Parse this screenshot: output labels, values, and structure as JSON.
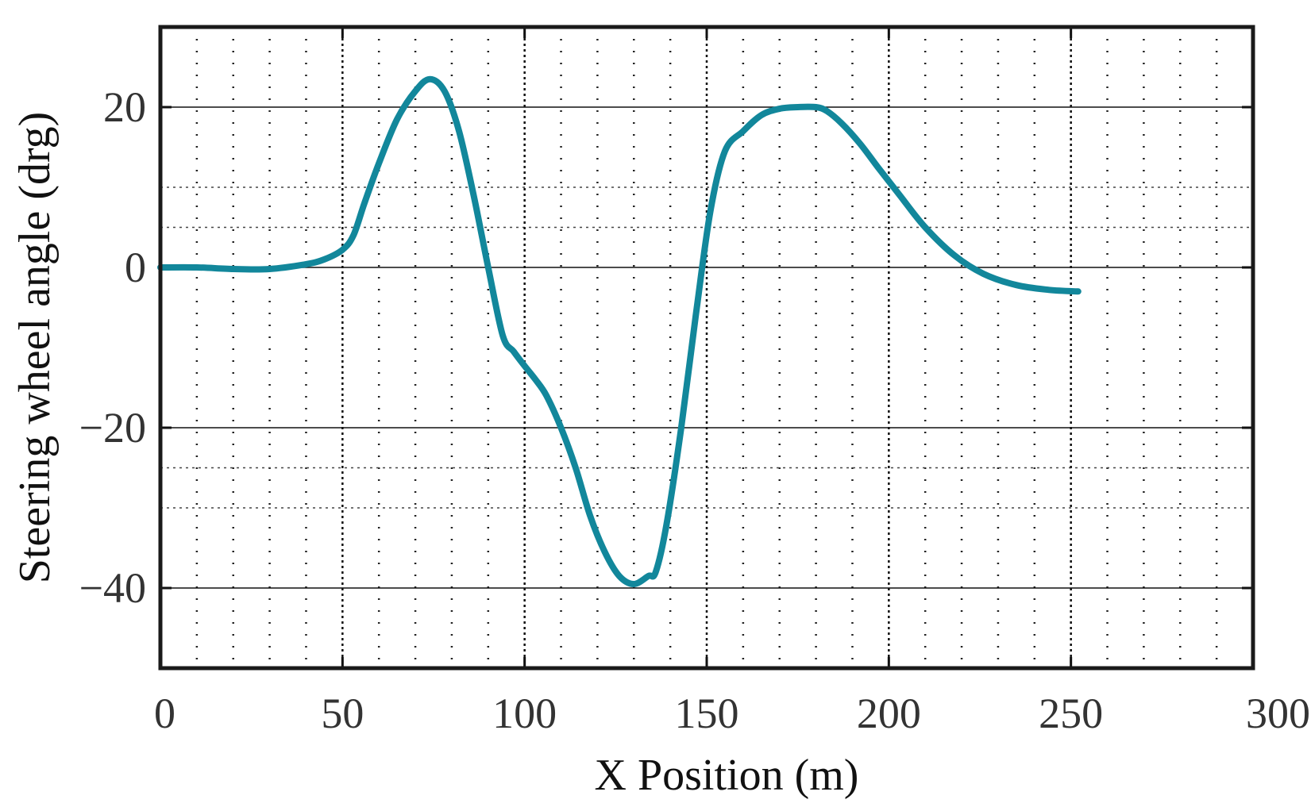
{
  "chart_data": {
    "type": "line",
    "title": "",
    "xlabel": "X Position (m)",
    "ylabel": "Steering wheel angle (drg)",
    "xlim": [
      0,
      300
    ],
    "ylim": [
      -50,
      30
    ],
    "xticks": [
      "0",
      "50",
      "100",
      "150",
      "200",
      "250",
      "300"
    ],
    "yticks": [
      "20",
      "0",
      "−20",
      "−40"
    ],
    "grid": true,
    "line_color": "#12879b",
    "series": [
      {
        "x": [
          0,
          10,
          20,
          30,
          40,
          45,
          50,
          53,
          56,
          60,
          65,
          70,
          74,
          78,
          82,
          86,
          90,
          94,
          97,
          100,
          103,
          106,
          110,
          114,
          118,
          122,
          126,
          130,
          134,
          136,
          139,
          143,
          147,
          151,
          155,
          160,
          165,
          170,
          175,
          180,
          183,
          187,
          192,
          197,
          203,
          210,
          218,
          226,
          235,
          244,
          252
        ],
        "y": [
          0,
          0,
          -0.2,
          -0.2,
          0.4,
          1,
          2.2,
          4,
          8,
          13,
          18.5,
          22,
          23.5,
          22,
          17,
          9,
          0,
          -8.5,
          -10.5,
          -12.3,
          -14,
          -16,
          -20,
          -25,
          -31,
          -35.5,
          -38.5,
          -39.5,
          -38.5,
          -38,
          -32,
          -20,
          -6,
          7,
          14.5,
          17,
          19,
          19.8,
          20,
          20,
          19.5,
          18,
          15.5,
          12.5,
          9,
          5,
          1.5,
          -0.8,
          -2.2,
          -2.8,
          -3
        ]
      }
    ]
  }
}
